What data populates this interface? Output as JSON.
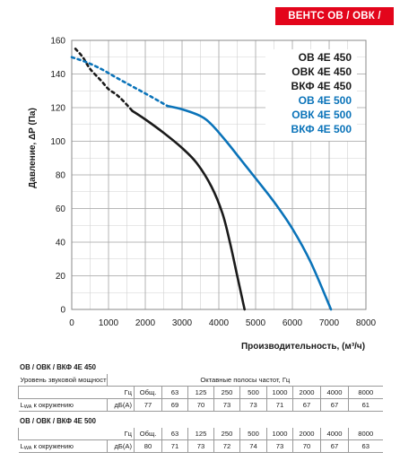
{
  "header": {
    "badge": "ВЕНТС ОВ / ОВК / ВКФ"
  },
  "chart_data": {
    "type": "line",
    "xlabel": "Производительность, (м³/ч)",
    "ylabel": "Давление, ΔP (Па)",
    "xlim": [
      0,
      8000
    ],
    "ylim": [
      0,
      160
    ],
    "xticks": [
      0,
      1000,
      2000,
      3000,
      4000,
      5000,
      6000,
      7000,
      8000
    ],
    "yticks": [
      0,
      20,
      40,
      60,
      80,
      100,
      120,
      140,
      160
    ],
    "grid": true,
    "legend_position": "top-right",
    "series": [
      {
        "names": [
          "ОВ 4E 450",
          "ОВК 4E 450",
          "ВКФ 4E 450"
        ],
        "color": "#1a1a1a",
        "dashed_points": [
          [
            100,
            155
          ],
          [
            300,
            150
          ],
          [
            500,
            143
          ],
          [
            800,
            136
          ],
          [
            1000,
            131
          ],
          [
            1200,
            128
          ],
          [
            1400,
            124
          ],
          [
            1650,
            118
          ]
        ],
        "solid_points": [
          [
            1650,
            118
          ],
          [
            2000,
            113
          ],
          [
            2500,
            105
          ],
          [
            3000,
            96
          ],
          [
            3400,
            87
          ],
          [
            3800,
            73
          ],
          [
            4100,
            57
          ],
          [
            4300,
            40
          ],
          [
            4500,
            20
          ],
          [
            4700,
            0
          ]
        ]
      },
      {
        "names": [
          "ОВ 4E 500",
          "ОВК 4E 500",
          "ВКФ 4E 500"
        ],
        "color": "#0a73b9",
        "dashed_points": [
          [
            0,
            150
          ],
          [
            400,
            147
          ],
          [
            800,
            143
          ],
          [
            1200,
            138
          ],
          [
            1700,
            132
          ],
          [
            2200,
            126
          ],
          [
            2600,
            121
          ]
        ],
        "solid_points": [
          [
            2600,
            121
          ],
          [
            3000,
            119
          ],
          [
            3500,
            115
          ],
          [
            3800,
            110
          ],
          [
            4200,
            100
          ],
          [
            4600,
            89
          ],
          [
            5000,
            78
          ],
          [
            5500,
            64
          ],
          [
            6000,
            48
          ],
          [
            6500,
            28
          ],
          [
            7050,
            0
          ]
        ]
      }
    ]
  },
  "tables": [
    {
      "title": "ОВ / ОВК / ВКФ 4E 450",
      "row1_label": "Уровень звуковой мощности",
      "row1_value": "Октавные полосы частот, Гц",
      "row2_unit": "Гц",
      "row2_cols": [
        "Общ.",
        "63",
        "125",
        "250",
        "500",
        "1000",
        "2000",
        "4000",
        "8000"
      ],
      "row3_label": "L",
      "row3_sub": "WA",
      "row3_label_rest": " к окружению",
      "row3_unit": "дБ(А)",
      "row3_vals": [
        "77",
        "69",
        "70",
        "73",
        "73",
        "71",
        "67",
        "67",
        "61"
      ]
    },
    {
      "title": "ОВ / ОВК / ВКФ 4E 500",
      "row1_label": "",
      "row1_value": "",
      "row2_unit": "Гц",
      "row2_cols": [
        "Общ.",
        "63",
        "125",
        "250",
        "500",
        "1000",
        "2000",
        "4000",
        "8000"
      ],
      "row3_label": "L",
      "row3_sub": "WA",
      "row3_label_rest": " к окружению",
      "row3_unit": "дБ(А)",
      "row3_vals": [
        "80",
        "71",
        "73",
        "72",
        "74",
        "73",
        "70",
        "67",
        "63"
      ]
    }
  ]
}
